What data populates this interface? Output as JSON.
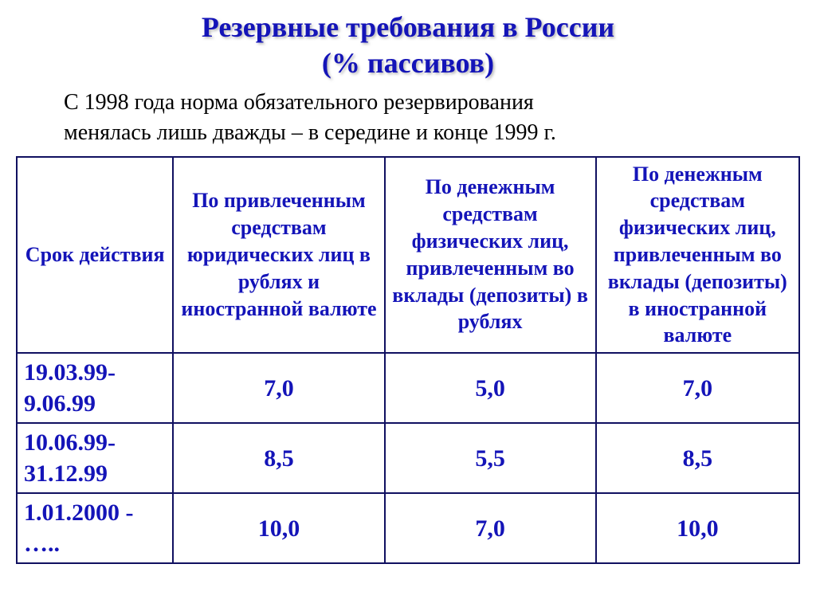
{
  "title": {
    "line1": "Резервные требования в России",
    "line2": "(% пассивов)",
    "color": "#1414b8",
    "fontsize": 36
  },
  "subtitle": {
    "text": "С 1998 года норма обязательного резервирования\nменялась лишь дважды – в середине и конце 1999 г.",
    "fontsize": 28,
    "color": "#000000"
  },
  "table": {
    "border_color": "#101060",
    "header_color": "#1414b8",
    "header_fontsize": 26,
    "data_color": "#1414b8",
    "data_fontsize": 30,
    "columns": [
      "Срок действия",
      "По привлеченным средствам юридических лиц в рублях и иностранной валюте",
      "По денежным средствам физических лиц, привлеченным во вклады (депозиты) в рублях",
      "По денежным средствам физических лиц, привлеченным во вклады (депозиты) в иностранной валюте"
    ],
    "rows": [
      {
        "period": "19.03.99-9.06.99",
        "v1": "7,0",
        "v2": "5,0",
        "v3": "7,0"
      },
      {
        "period": "10.06.99-31.12.99",
        "v1": "8,5",
        "v2": "5,5",
        "v3": "8,5"
      },
      {
        "period": "1.01.2000 - …..",
        "v1": "10,0",
        "v2": "7,0",
        "v3": "10,0"
      }
    ]
  }
}
